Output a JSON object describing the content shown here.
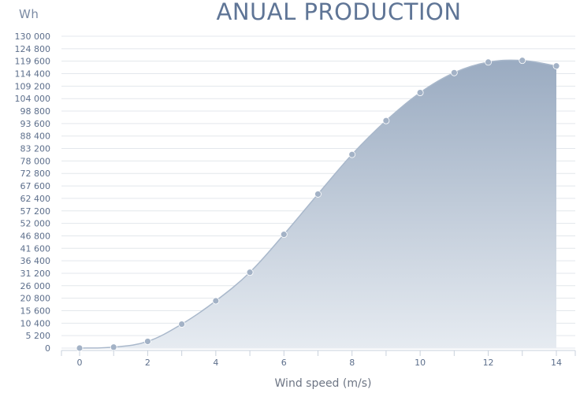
{
  "chart_data": {
    "type": "area",
    "title": "ANUAL PRODUCTION",
    "xlabel": "Wind speed (m/s)",
    "ylabel": "Wh",
    "x": [
      0,
      1,
      2,
      3,
      4,
      5,
      6,
      7,
      8,
      9,
      10,
      11,
      12,
      13,
      14
    ],
    "values": [
      0,
      400,
      2800,
      10000,
      19700,
      31600,
      47400,
      64200,
      80700,
      94800,
      106500,
      114800,
      119200,
      119900,
      117600
    ],
    "xlim": [
      0,
      14
    ],
    "ylim": [
      0,
      130000
    ],
    "x_ticks": [
      0,
      2,
      4,
      6,
      8,
      10,
      12,
      14
    ],
    "x_tick_labels": [
      "0",
      "2",
      "4",
      "6",
      "8",
      "10",
      "12",
      "14"
    ],
    "y_ticks": [
      0,
      5200,
      10400,
      15600,
      20800,
      26000,
      31200,
      36400,
      41600,
      46800,
      52000,
      57200,
      62400,
      67600,
      72800,
      78000,
      83200,
      88400,
      93600,
      98800,
      104000,
      109200,
      114400,
      119600,
      124800,
      130000
    ],
    "y_tick_labels": [
      "0",
      "5 200",
      "10 400",
      "15 600",
      "20 800",
      "26 000",
      "31 200",
      "36 400",
      "41 600",
      "46 800",
      "52 000",
      "57 200",
      "62 400",
      "67 600",
      "72 800",
      "78 000",
      "83 200",
      "88 400",
      "93 600",
      "98 800",
      "104 000",
      "109 200",
      "114 400",
      "119 600",
      "124 800",
      "130 000"
    ],
    "grid": true,
    "colors": {
      "fill_top": "#9aabc1",
      "fill_bottom": "#e6ebf1",
      "line": "#a9b8cb",
      "point": "#a3b2c6",
      "grid": "#e3e7ec",
      "tick_label": "#5d6f8c",
      "title": "#5f7596"
    }
  }
}
